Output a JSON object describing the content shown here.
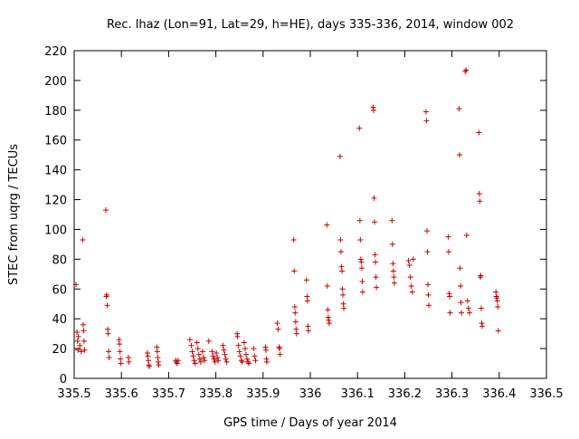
{
  "chart_data": {
    "type": "scatter",
    "title": "Rec. lhaz (Lon=91, Lat=29, h=HE), days 335-336, 2014, window 002",
    "xlabel": "GPS time / Days of year 2014",
    "ylabel": "STEC from uqrg / TECUs",
    "xlim": [
      335.5,
      336.5
    ],
    "ylim": [
      0,
      220
    ],
    "xticks": [
      335.5,
      335.6,
      335.7,
      335.8,
      335.9,
      336.0,
      336.1,
      336.2,
      336.3,
      336.4,
      336.5
    ],
    "xtick_labels": [
      "335.5",
      "335.6",
      "335.7",
      "335.8",
      "335.9",
      "336",
      "336.1",
      "336.2",
      "336.3",
      "336.4",
      "336.5"
    ],
    "yticks": [
      0,
      20,
      40,
      60,
      80,
      100,
      120,
      140,
      160,
      180,
      200,
      220
    ],
    "ytick_labels": [
      "0",
      "20",
      "40",
      "60",
      "80",
      "100",
      "120",
      "140",
      "160",
      "180",
      "200",
      "220"
    ],
    "grid": false,
    "marker": "+",
    "color": "#cc0000",
    "series": [
      {
        "points": [
          [
            335.504,
            63
          ],
          [
            335.506,
            31
          ],
          [
            335.507,
            25
          ],
          [
            335.508,
            19
          ],
          [
            335.509,
            28
          ],
          [
            335.512,
            22
          ],
          [
            335.515,
            18
          ],
          [
            335.518,
            93
          ],
          [
            335.519,
            36
          ],
          [
            335.52,
            32
          ],
          [
            335.521,
            25
          ],
          [
            335.522,
            19
          ],
          [
            335.567,
            113
          ],
          [
            335.568,
            55
          ],
          [
            335.569,
            56
          ],
          [
            335.57,
            49
          ],
          [
            335.571,
            33
          ],
          [
            335.572,
            30
          ],
          [
            335.573,
            18
          ],
          [
            335.574,
            14
          ],
          [
            335.595,
            26
          ],
          [
            335.596,
            23
          ],
          [
            335.597,
            18
          ],
          [
            335.598,
            13
          ],
          [
            335.599,
            10
          ],
          [
            335.615,
            14
          ],
          [
            335.616,
            11
          ],
          [
            335.655,
            17
          ],
          [
            335.656,
            15
          ],
          [
            335.657,
            12
          ],
          [
            335.658,
            9
          ],
          [
            335.659,
            8
          ],
          [
            335.675,
            21
          ],
          [
            335.676,
            18
          ],
          [
            335.677,
            14
          ],
          [
            335.678,
            11
          ],
          [
            335.679,
            9
          ],
          [
            335.715,
            12
          ],
          [
            335.716,
            11
          ],
          [
            335.718,
            10
          ],
          [
            335.72,
            12
          ],
          [
            335.745,
            26
          ],
          [
            335.748,
            22
          ],
          [
            335.75,
            18
          ],
          [
            335.752,
            15
          ],
          [
            335.754,
            12
          ],
          [
            335.756,
            10
          ],
          [
            335.76,
            24
          ],
          [
            335.762,
            20
          ],
          [
            335.764,
            16
          ],
          [
            335.766,
            13
          ],
          [
            335.768,
            11
          ],
          [
            335.772,
            18
          ],
          [
            335.774,
            14
          ],
          [
            335.776,
            12
          ],
          [
            335.785,
            25
          ],
          [
            335.792,
            18
          ],
          [
            335.794,
            15
          ],
          [
            335.796,
            13
          ],
          [
            335.798,
            11
          ],
          [
            335.801,
            17
          ],
          [
            335.803,
            14
          ],
          [
            335.805,
            12
          ],
          [
            335.815,
            22
          ],
          [
            335.817,
            19
          ],
          [
            335.819,
            16
          ],
          [
            335.821,
            13
          ],
          [
            335.823,
            11
          ],
          [
            335.845,
            30
          ],
          [
            335.846,
            28
          ],
          [
            335.848,
            22
          ],
          [
            335.85,
            18
          ],
          [
            335.852,
            15
          ],
          [
            335.854,
            12
          ],
          [
            335.856,
            11
          ],
          [
            335.86,
            24
          ],
          [
            335.862,
            20
          ],
          [
            335.864,
            16
          ],
          [
            335.866,
            13
          ],
          [
            335.868,
            11
          ],
          [
            335.87,
            10
          ],
          [
            335.88,
            20
          ],
          [
            335.882,
            15
          ],
          [
            335.884,
            12
          ],
          [
            335.905,
            21
          ],
          [
            335.906,
            19
          ],
          [
            335.907,
            13
          ],
          [
            335.908,
            11
          ],
          [
            335.93,
            37
          ],
          [
            335.932,
            33
          ],
          [
            335.934,
            21
          ],
          [
            335.935,
            20
          ],
          [
            335.936,
            16
          ],
          [
            335.965,
            93
          ],
          [
            335.966,
            72
          ],
          [
            335.967,
            48
          ],
          [
            335.968,
            44
          ],
          [
            335.969,
            38
          ],
          [
            335.97,
            33
          ],
          [
            335.971,
            30
          ],
          [
            335.992,
            66
          ],
          [
            335.993,
            55
          ],
          [
            335.994,
            52
          ],
          [
            335.995,
            35
          ],
          [
            335.996,
            32
          ],
          [
            336.035,
            103
          ],
          [
            336.036,
            62
          ],
          [
            336.037,
            46
          ],
          [
            336.038,
            41
          ],
          [
            336.039,
            39
          ],
          [
            336.04,
            37
          ],
          [
            336.063,
            149
          ],
          [
            336.064,
            93
          ],
          [
            336.065,
            85
          ],
          [
            336.066,
            75
          ],
          [
            336.067,
            72
          ],
          [
            336.068,
            60
          ],
          [
            336.069,
            56
          ],
          [
            336.07,
            50
          ],
          [
            336.071,
            47
          ],
          [
            336.104,
            168
          ],
          [
            336.105,
            106
          ],
          [
            336.106,
            93
          ],
          [
            336.107,
            80
          ],
          [
            336.108,
            78
          ],
          [
            336.109,
            74
          ],
          [
            336.11,
            65
          ],
          [
            336.111,
            58
          ],
          [
            336.133,
            182
          ],
          [
            336.134,
            180
          ],
          [
            336.135,
            121
          ],
          [
            336.136,
            105
          ],
          [
            336.137,
            83
          ],
          [
            336.138,
            78
          ],
          [
            336.139,
            68
          ],
          [
            336.14,
            61
          ],
          [
            336.173,
            106
          ],
          [
            336.174,
            90
          ],
          [
            336.175,
            77
          ],
          [
            336.176,
            72
          ],
          [
            336.177,
            68
          ],
          [
            336.178,
            64
          ],
          [
            336.208,
            79
          ],
          [
            336.21,
            76
          ],
          [
            336.212,
            68
          ],
          [
            336.214,
            62
          ],
          [
            336.216,
            58
          ],
          [
            336.218,
            80
          ],
          [
            336.245,
            179
          ],
          [
            336.246,
            173
          ],
          [
            336.247,
            99
          ],
          [
            336.248,
            85
          ],
          [
            336.249,
            63
          ],
          [
            336.25,
            56
          ],
          [
            336.251,
            49
          ],
          [
            336.292,
            95
          ],
          [
            336.293,
            85
          ],
          [
            336.294,
            57
          ],
          [
            336.295,
            55
          ],
          [
            336.296,
            44
          ],
          [
            336.315,
            181
          ],
          [
            336.316,
            150
          ],
          [
            336.317,
            74
          ],
          [
            336.318,
            62
          ],
          [
            336.319,
            51
          ],
          [
            336.32,
            44
          ],
          [
            336.328,
            206
          ],
          [
            336.33,
            207
          ],
          [
            336.331,
            96
          ],
          [
            336.333,
            52
          ],
          [
            336.335,
            47
          ],
          [
            336.337,
            44
          ],
          [
            336.357,
            165
          ],
          [
            336.358,
            124
          ],
          [
            336.359,
            119
          ],
          [
            336.36,
            68
          ],
          [
            336.361,
            69
          ],
          [
            336.362,
            47
          ],
          [
            336.363,
            37
          ],
          [
            336.364,
            35
          ],
          [
            336.393,
            58
          ],
          [
            336.394,
            55
          ],
          [
            336.395,
            54
          ],
          [
            336.396,
            52
          ],
          [
            336.397,
            48
          ],
          [
            336.398,
            32
          ]
        ]
      }
    ]
  }
}
